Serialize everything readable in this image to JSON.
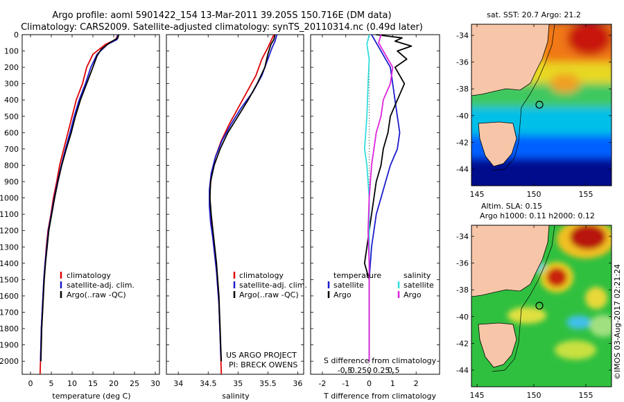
{
  "title_line1": "Argo profile: aoml 5901422_154 13-Mar-2011 39.205S 150.716E (DM data)",
  "title_line2": "Climatology: CARS2009. Satellite-adjusted climatology: synTS_20110314.nc (0.49d later)",
  "depth_ticks": [
    0,
    100,
    200,
    300,
    400,
    500,
    600,
    700,
    800,
    900,
    1000,
    1100,
    1200,
    1300,
    1400,
    1500,
    1600,
    1700,
    1800,
    1900,
    2000
  ],
  "colors": {
    "climatology": "#dd0000",
    "satellite": "#1a1acc",
    "argo": "#000000",
    "sat_salt": "#33dddd",
    "argo_salt": "#dd22dd"
  },
  "legend": {
    "climatology": "climatology",
    "satellite": "satellite-adj. clim.",
    "argo": "Argo(..raw -QC)"
  },
  "diff_legend": {
    "temperature": "temperature",
    "salinity": "salinity",
    "satellite": "satellite",
    "argo": "Argo"
  },
  "project": {
    "line1": "US ARGO PROJECT",
    "line2": "PI: BRECK OWENS"
  },
  "map1": {
    "title": "sat. SST: 20.7 Argo: 21.2",
    "lat_ticks": [
      "-34",
      "-36",
      "-38",
      "-40",
      "-42",
      "-44"
    ],
    "lon_ticks": [
      "145",
      "150",
      "155"
    ]
  },
  "map2": {
    "title1": "Altim. SLA: 0.15",
    "title2": "Argo h1000: 0.11 h2000: 0.12",
    "lat_ticks": [
      "-34",
      "-36",
      "-38",
      "-40",
      "-42",
      "-44"
    ],
    "lon_ticks": [
      "145",
      "150",
      "155"
    ]
  },
  "credit": "©IMOS 03-Aug-2017 02:21:24",
  "chart_data": [
    {
      "type": "line",
      "xlabel": "temperature (deg C)",
      "ylabel": "",
      "xlim": [
        -2,
        31
      ],
      "ylim": [
        2080,
        0
      ],
      "x_ticks": [
        0,
        5,
        10,
        15,
        20,
        25,
        30
      ],
      "series": [
        {
          "name": "climatology",
          "points": [
            [
              21,
              0
            ],
            [
              20.5,
              30
            ],
            [
              18,
              60
            ],
            [
              15,
              120
            ],
            [
              13.5,
              200
            ],
            [
              12.5,
              300
            ],
            [
              11,
              400
            ],
            [
              10,
              500
            ],
            [
              9,
              600
            ],
            [
              8,
              700
            ],
            [
              7,
              800
            ],
            [
              6.3,
              900
            ],
            [
              5.5,
              1000
            ],
            [
              4.9,
              1100
            ],
            [
              4.2,
              1200
            ],
            [
              3.8,
              1300
            ],
            [
              3.5,
              1400
            ],
            [
              3.2,
              1500
            ],
            [
              3,
              1600
            ],
            [
              2.8,
              1700
            ],
            [
              2.6,
              1800
            ],
            [
              2.5,
              1900
            ],
            [
              2.4,
              2000
            ],
            [
              2.3,
              2080
            ]
          ]
        },
        {
          "name": "satellite-adj. clim.",
          "points": [
            [
              21,
              0
            ],
            [
              20.8,
              30
            ],
            [
              18.5,
              60
            ],
            [
              16,
              120
            ],
            [
              14.5,
              200
            ],
            [
              13.2,
              300
            ],
            [
              11.7,
              400
            ],
            [
              10.5,
              500
            ],
            [
              9.5,
              600
            ],
            [
              8.4,
              700
            ],
            [
              7.4,
              800
            ],
            [
              6.5,
              900
            ],
            [
              5.7,
              1000
            ],
            [
              5,
              1100
            ],
            [
              4.3,
              1200
            ],
            [
              3.9,
              1300
            ],
            [
              3.5,
              1400
            ],
            [
              3.2,
              1500
            ],
            [
              3,
              1600
            ],
            [
              2.8,
              1700
            ],
            [
              2.6,
              1800
            ],
            [
              2.5,
              1900
            ],
            [
              2.4,
              2000
            ]
          ]
        },
        {
          "name": "Argo(..raw -QC)",
          "points": [
            [
              21.2,
              0
            ],
            [
              21,
              20
            ],
            [
              19,
              50
            ],
            [
              17,
              90
            ],
            [
              16,
              130
            ],
            [
              15,
              200
            ],
            [
              13.5,
              300
            ],
            [
              12,
              400
            ],
            [
              10.8,
              500
            ],
            [
              9.8,
              600
            ],
            [
              8.6,
              700
            ],
            [
              7.5,
              800
            ],
            [
              6.6,
              900
            ],
            [
              5.8,
              1000
            ],
            [
              5.1,
              1100
            ],
            [
              4.4,
              1200
            ],
            [
              4,
              1300
            ],
            [
              3.6,
              1400
            ],
            [
              3.3,
              1500
            ],
            [
              3.1,
              1600
            ],
            [
              2.9,
              1700
            ],
            [
              2.7,
              1800
            ],
            [
              2.6,
              1900
            ],
            [
              2.5,
              2000
            ]
          ]
        }
      ]
    },
    {
      "type": "line",
      "xlabel": "salinity",
      "ylabel": "",
      "xlim": [
        33.8,
        36.1
      ],
      "ylim": [
        2080,
        0
      ],
      "x_ticks": [
        34,
        34.5,
        35,
        35.5,
        36
      ],
      "series": [
        {
          "name": "climatology",
          "points": [
            [
              35.6,
              0
            ],
            [
              35.55,
              40
            ],
            [
              35.5,
              80
            ],
            [
              35.4,
              150
            ],
            [
              35.3,
              250
            ],
            [
              35.15,
              350
            ],
            [
              35,
              450
            ],
            [
              34.85,
              550
            ],
            [
              34.72,
              650
            ],
            [
              34.62,
              750
            ],
            [
              34.56,
              850
            ],
            [
              34.53,
              950
            ],
            [
              34.53,
              1050
            ],
            [
              34.55,
              1150
            ],
            [
              34.58,
              1250
            ],
            [
              34.61,
              1350
            ],
            [
              34.64,
              1450
            ],
            [
              34.66,
              1550
            ],
            [
              34.68,
              1650
            ],
            [
              34.69,
              1750
            ],
            [
              34.7,
              1850
            ],
            [
              34.71,
              1950
            ],
            [
              34.72,
              2080
            ]
          ]
        },
        {
          "name": "satellite-adj. clim.",
          "points": [
            [
              35.65,
              0
            ],
            [
              35.62,
              40
            ],
            [
              35.57,
              80
            ],
            [
              35.5,
              150
            ],
            [
              35.4,
              250
            ],
            [
              35.25,
              350
            ],
            [
              35.05,
              450
            ],
            [
              34.88,
              550
            ],
            [
              34.73,
              650
            ],
            [
              34.62,
              750
            ],
            [
              34.55,
              850
            ],
            [
              34.52,
              950
            ],
            [
              34.52,
              1050
            ],
            [
              34.54,
              1150
            ],
            [
              34.58,
              1250
            ],
            [
              34.61,
              1350
            ],
            [
              34.64,
              1450
            ],
            [
              34.66,
              1550
            ],
            [
              34.68,
              1650
            ],
            [
              34.69,
              1750
            ],
            [
              34.7,
              1850
            ],
            [
              34.71,
              1950
            ],
            [
              34.72,
              2000
            ]
          ]
        },
        {
          "name": "Argo(..raw -QC)",
          "points": [
            [
              35.62,
              0
            ],
            [
              35.6,
              30
            ],
            [
              35.55,
              60
            ],
            [
              35.5,
              120
            ],
            [
              35.45,
              200
            ],
            [
              35.32,
              300
            ],
            [
              35.17,
              400
            ],
            [
              35,
              500
            ],
            [
              34.83,
              600
            ],
            [
              34.7,
              700
            ],
            [
              34.6,
              800
            ],
            [
              34.54,
              900
            ],
            [
              34.53,
              1000
            ],
            [
              34.55,
              1100
            ],
            [
              34.58,
              1200
            ],
            [
              34.61,
              1300
            ],
            [
              34.64,
              1400
            ],
            [
              34.66,
              1500
            ],
            [
              34.68,
              1600
            ],
            [
              34.69,
              1700
            ],
            [
              34.7,
              1800
            ],
            [
              34.71,
              1900
            ],
            [
              34.72,
              2000
            ]
          ]
        }
      ]
    },
    {
      "type": "line",
      "xlabel": "T difference from climatology",
      "x2label": "S difference from climatology",
      "xlim": [
        -2.5,
        3
      ],
      "x_ticks": [
        -2,
        -1,
        0,
        1,
        2
      ],
      "x2_ticks": [
        "-0.5",
        "-0.25",
        "0",
        "0.25",
        "0.5"
      ],
      "ylim": [
        2080,
        0
      ],
      "series": [
        {
          "name": "temperature satellite",
          "points": [
            [
              0.1,
              0
            ],
            [
              0.3,
              50
            ],
            [
              0.5,
              100
            ],
            [
              0.7,
              150
            ],
            [
              0.9,
              200
            ],
            [
              1,
              300
            ],
            [
              1.1,
              400
            ],
            [
              1.2,
              500
            ],
            [
              1.3,
              600
            ],
            [
              1.2,
              700
            ],
            [
              0.9,
              800
            ],
            [
              0.7,
              900
            ],
            [
              0.5,
              1000
            ],
            [
              0.3,
              1100
            ],
            [
              0.2,
              1200
            ],
            [
              0.1,
              1300
            ],
            [
              0.05,
              1400
            ],
            [
              0,
              1500
            ],
            [
              0,
              2000
            ]
          ]
        },
        {
          "name": "temperature Argo",
          "points": [
            [
              0.3,
              0
            ],
            [
              1.4,
              20
            ],
            [
              1.1,
              40
            ],
            [
              1.8,
              70
            ],
            [
              1.2,
              100
            ],
            [
              1.6,
              150
            ],
            [
              1.1,
              200
            ],
            [
              1.5,
              300
            ],
            [
              1.2,
              400
            ],
            [
              0.9,
              500
            ],
            [
              0.8,
              600
            ],
            [
              0.6,
              700
            ],
            [
              0.5,
              800
            ],
            [
              0.3,
              900
            ],
            [
              0.2,
              1000
            ],
            [
              0.1,
              1100
            ],
            [
              0,
              1200
            ],
            [
              -0.1,
              1300
            ],
            [
              -0.2,
              1400
            ],
            [
              0,
              1500
            ],
            [
              0,
              2000
            ]
          ]
        },
        {
          "name": "salinity satellite",
          "points": [
            [
              0,
              0
            ],
            [
              -0.1,
              60
            ],
            [
              0,
              150
            ],
            [
              -0.05,
              300
            ],
            [
              -0.1,
              500
            ],
            [
              -0.2,
              700
            ],
            [
              -0.1,
              800
            ],
            [
              0,
              1000
            ],
            [
              0,
              2000
            ]
          ]
        },
        {
          "name": "salinity Argo",
          "points": [
            [
              0.5,
              0
            ],
            [
              0.4,
              50
            ],
            [
              0.6,
              100
            ],
            [
              0.8,
              150
            ],
            [
              1,
              200
            ],
            [
              0.9,
              300
            ],
            [
              0.6,
              400
            ],
            [
              0.5,
              500
            ],
            [
              0.3,
              600
            ],
            [
              0.2,
              700
            ],
            [
              0.1,
              800
            ],
            [
              0,
              1000
            ],
            [
              -0.05,
              1200
            ],
            [
              0,
              1400
            ],
            [
              0,
              2000
            ]
          ]
        }
      ]
    }
  ]
}
